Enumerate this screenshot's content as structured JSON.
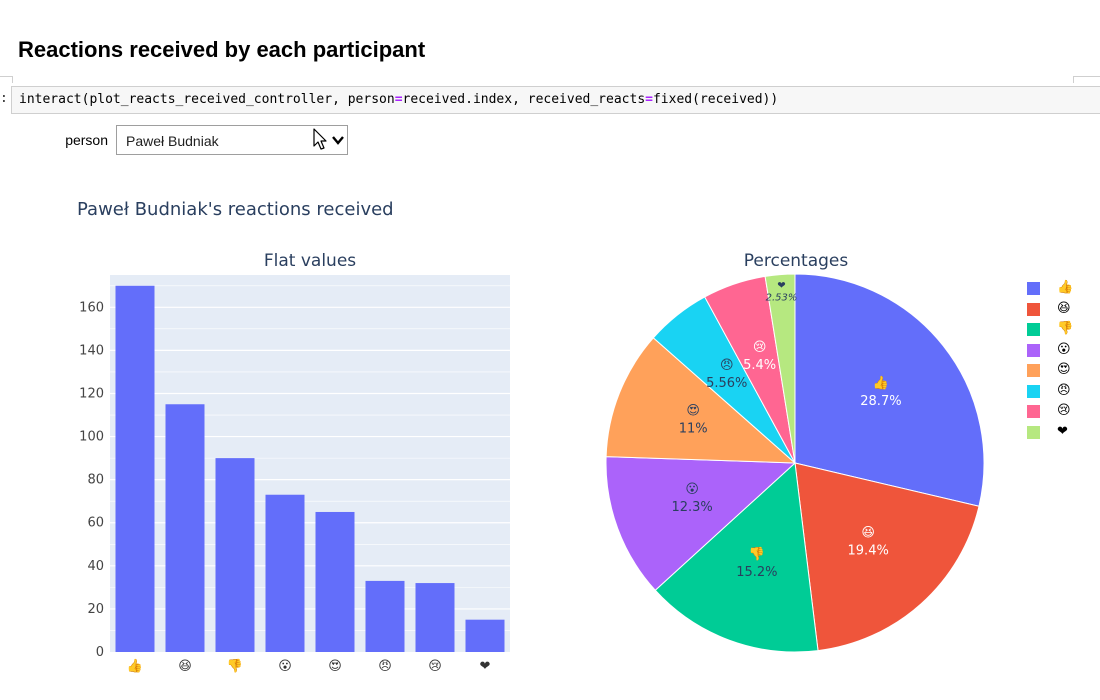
{
  "notebook": {
    "heading": "Reactions received by each participant",
    "prompt": ":",
    "code": {
      "before": "interact(plot_reacts_received_controller, person",
      "op1": "=",
      "middle": "received.index, received_reacts",
      "op2": "=",
      "after": "fixed(received))"
    }
  },
  "widget": {
    "label": "person",
    "selected": "Paweł Budniak",
    "chevron_icon": "chevron-down-icon",
    "cursor_icon": "mouse-pointer-icon"
  },
  "figure": {
    "title": "Paweł Budniak's reactions received",
    "colors": [
      "#636efa",
      "#EF553B",
      "#00cc96",
      "#ab63fa",
      "#FFA15A",
      "#19d3f3",
      "#FF6692",
      "#B6E880"
    ],
    "text_color": "#2a3f5f",
    "plot_bg": "#e5ecf6"
  },
  "chart_data": [
    {
      "type": "bar",
      "title": "Flat values",
      "categories": [
        "👍",
        "😆",
        "👎",
        "😮",
        "😍",
        "😠",
        "😢",
        "❤"
      ],
      "values": [
        170,
        115,
        90,
        73,
        65,
        33,
        32,
        15
      ],
      "ylim": [
        0,
        175
      ],
      "yticks": [
        "0",
        "20",
        "40",
        "60",
        "80",
        "100",
        "120",
        "140",
        "160"
      ],
      "grid": true,
      "color": "#636efa"
    },
    {
      "type": "pie",
      "title": "Percentages",
      "labels": [
        "👍",
        "😆",
        "👎",
        "😮",
        "😍",
        "😠",
        "😢",
        "❤"
      ],
      "values": [
        28.7,
        19.4,
        15.2,
        12.3,
        11,
        5.56,
        5.4,
        2.53
      ],
      "percent_labels": [
        "28.7%",
        "19.4%",
        "15.2%",
        "12.3%",
        "11%",
        "5.56%",
        "5.4%",
        "2.53%"
      ],
      "legend": "right"
    }
  ]
}
